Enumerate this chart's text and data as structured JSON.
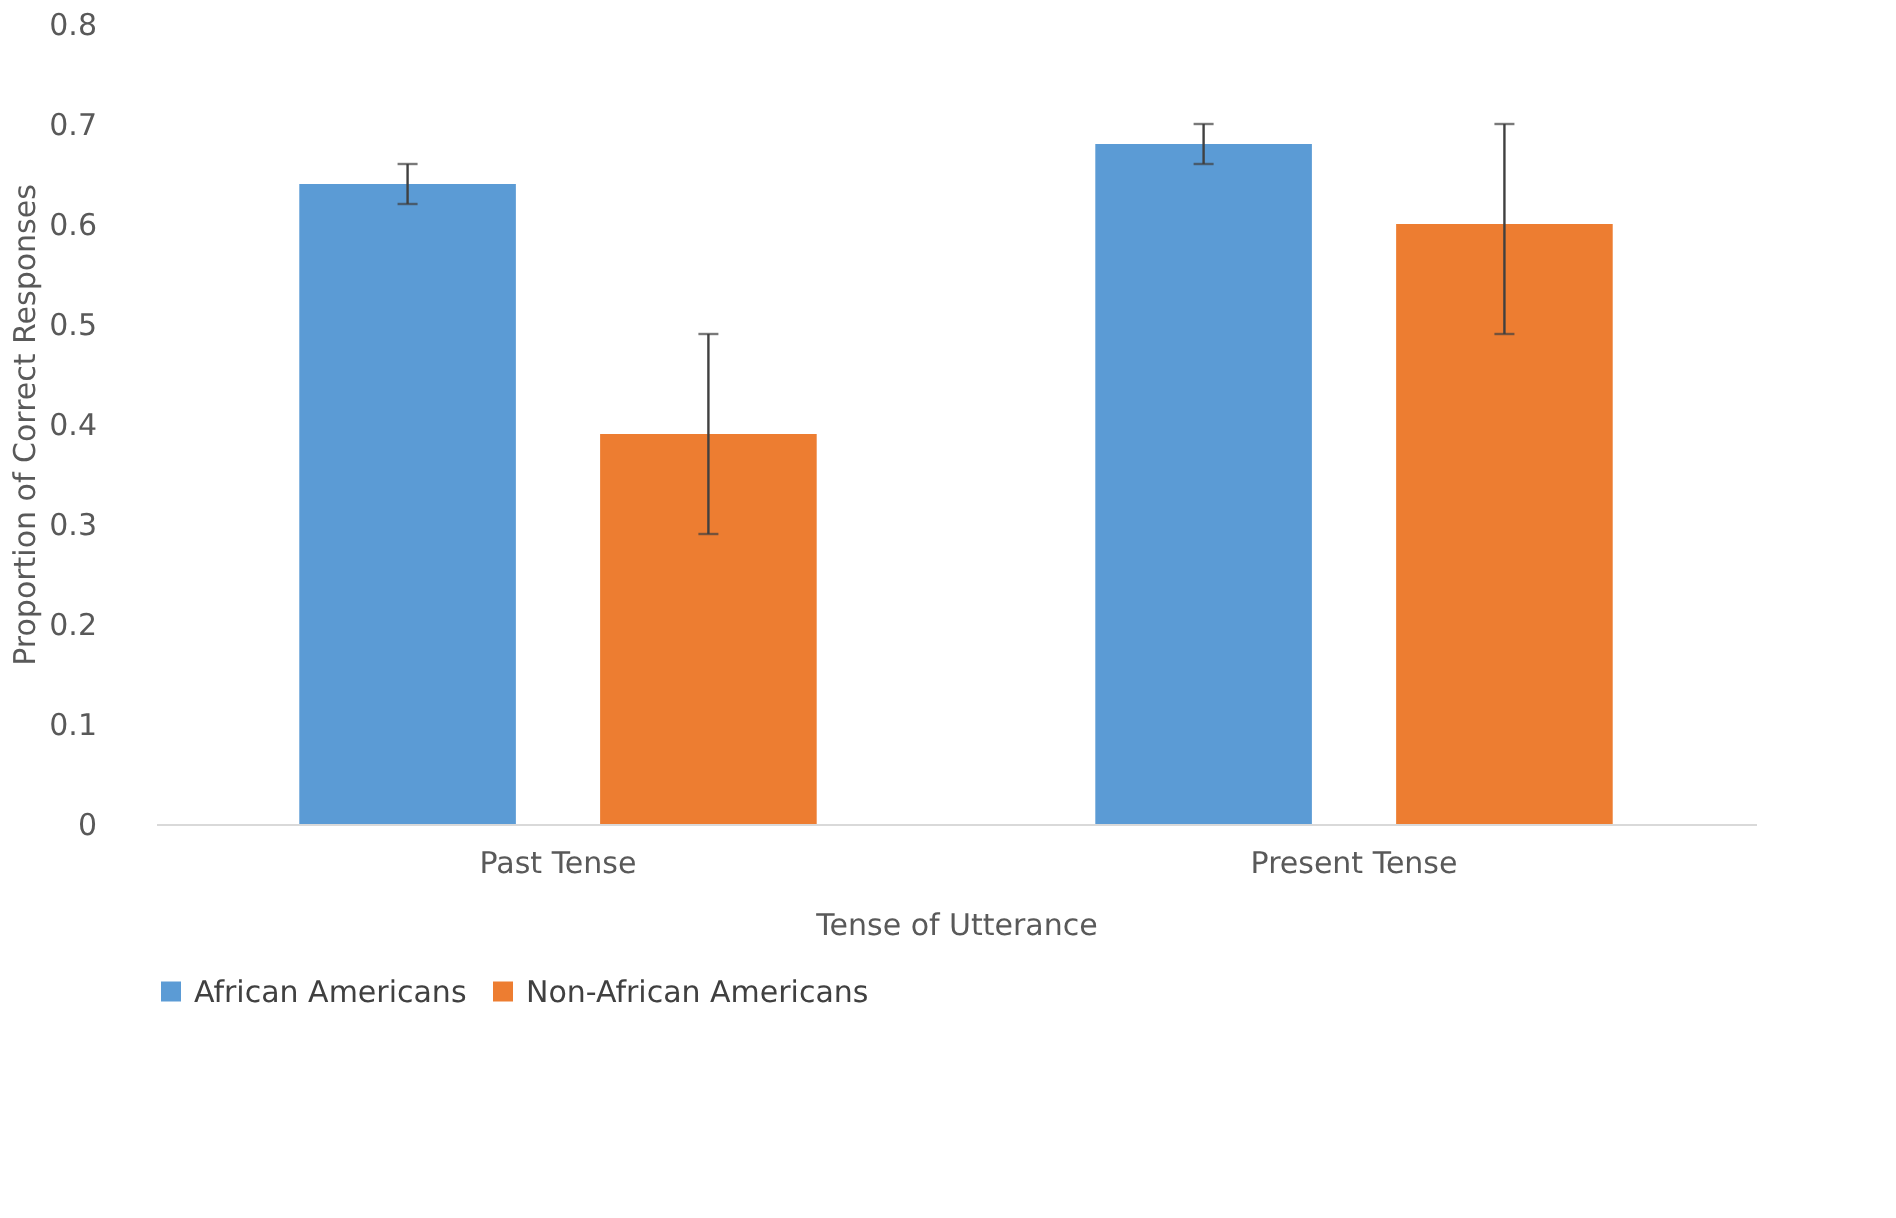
{
  "chart_data": {
    "type": "bar",
    "xlabel": "Tense of Utterance",
    "ylabel": "Proportion of Correct Responses",
    "categories": [
      "Past Tense",
      "Present Tense"
    ],
    "series": [
      {
        "name": "African Americans",
        "color": "#5b9bd5",
        "values": [
          0.64,
          0.68
        ],
        "errors": [
          [
            0.62,
            0.66
          ],
          [
            0.66,
            0.7
          ]
        ]
      },
      {
        "name": "Non-African Americans",
        "color": "#ed7d31",
        "values": [
          0.39,
          0.6
        ],
        "errors": [
          [
            0.29,
            0.49
          ],
          [
            0.49,
            0.7
          ]
        ]
      }
    ],
    "ylim": [
      0,
      0.8
    ],
    "yticks": [
      0,
      0.1,
      0.2,
      0.3,
      0.4,
      0.5,
      0.6,
      0.7,
      0.8
    ],
    "grid": false,
    "legend": "bottom"
  }
}
